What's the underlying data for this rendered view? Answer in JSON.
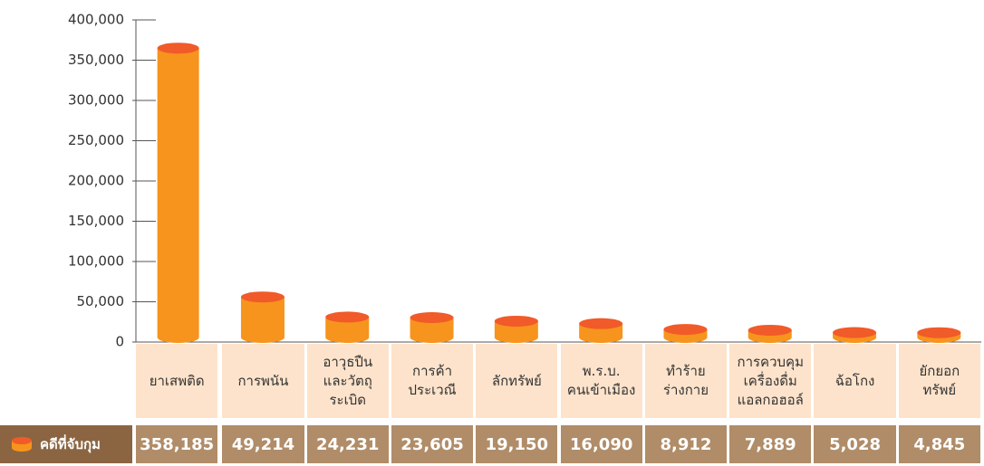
{
  "chart_data": {
    "type": "bar",
    "categories": [
      "ยาเสพติด",
      "การพนัน",
      "อาวุธปืน\nและวัตถุ\nระเบิด",
      "การค้า\nประเวณี",
      "ลักทรัพย์",
      "พ.ร.บ.\nคนเข้าเมือง",
      "ทำร้าย\nร่างกาย",
      "การควบคุม\nเครื่องดื่ม\nแอลกอฮอล์",
      "ฉ้อโกง",
      "ยักยอก\nทรัพย์"
    ],
    "series": [
      {
        "name": "คดีที่จับกุม",
        "color": "#f7941d",
        "cap_color": "#f15a29",
        "values": [
          358185,
          49214,
          24231,
          23605,
          19150,
          16090,
          8912,
          7889,
          5028,
          4845
        ],
        "value_labels": [
          "358,185",
          "49,214",
          "24,231",
          "23,605",
          "19,150",
          "16,090",
          "8,912",
          "7,889",
          "5,028",
          "4,845"
        ]
      }
    ],
    "ylim": [
      0,
      400000
    ],
    "yticks": [
      0,
      {
        "value": 50000,
        "label": "50,000"
      },
      {
        "value": 100000,
        "label": "100,000"
      },
      {
        "value": 150000,
        "label": "150,000"
      },
      {
        "value": 200000,
        "label": "200,000"
      },
      {
        "value": 250000,
        "label": "250,000"
      },
      {
        "value": 300000,
        "label": "300,000"
      },
      {
        "value": 350000,
        "label": "350,000"
      },
      {
        "value": 400000,
        "label": "400,000"
      }
    ]
  }
}
